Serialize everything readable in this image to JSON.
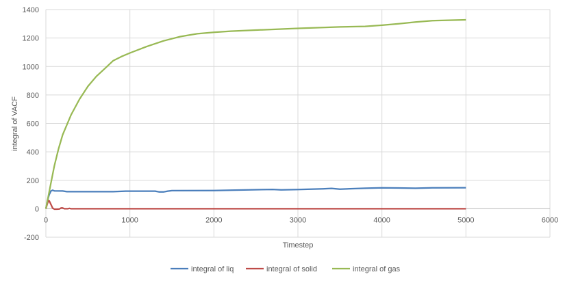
{
  "chart_data": {
    "type": "line",
    "xlabel": "Timestep",
    "ylabel": "integral of VACF",
    "xlim": [
      0,
      6000
    ],
    "ylim": [
      -200,
      1400
    ],
    "x_ticks": [
      "0",
      "1000",
      "2000",
      "3000",
      "4000",
      "5000",
      "6000"
    ],
    "y_ticks": [
      "-200",
      "0",
      "200",
      "400",
      "600",
      "800",
      "1000",
      "1200",
      "1400"
    ],
    "grid": true,
    "legend_position": "bottom",
    "series": [
      {
        "name": "integral of liq",
        "color": "#4a7ebb",
        "points": [
          [
            0,
            0
          ],
          [
            20,
            60
          ],
          [
            40,
            100
          ],
          [
            60,
            125
          ],
          [
            80,
            130
          ],
          [
            100,
            126
          ],
          [
            200,
            125
          ],
          [
            250,
            120
          ],
          [
            500,
            120
          ],
          [
            800,
            120
          ],
          [
            950,
            124
          ],
          [
            1300,
            124
          ],
          [
            1350,
            118
          ],
          [
            1400,
            118
          ],
          [
            1450,
            124
          ],
          [
            1500,
            127
          ],
          [
            2000,
            128
          ],
          [
            2200,
            130
          ],
          [
            2700,
            136
          ],
          [
            2800,
            133
          ],
          [
            3000,
            135
          ],
          [
            3300,
            140
          ],
          [
            3400,
            143
          ],
          [
            3500,
            138
          ],
          [
            3800,
            144
          ],
          [
            4000,
            147
          ],
          [
            4200,
            146
          ],
          [
            4400,
            144
          ],
          [
            4600,
            147
          ],
          [
            5000,
            148
          ]
        ]
      },
      {
        "name": "integral of solid",
        "color": "#be4b48",
        "points": [
          [
            0,
            0
          ],
          [
            15,
            30
          ],
          [
            30,
            58
          ],
          [
            40,
            55
          ],
          [
            60,
            30
          ],
          [
            80,
            5
          ],
          [
            100,
            -3
          ],
          [
            130,
            -3
          ],
          [
            160,
            -2
          ],
          [
            180,
            5
          ],
          [
            200,
            5
          ],
          [
            220,
            0
          ],
          [
            260,
            0
          ],
          [
            280,
            3
          ],
          [
            300,
            0
          ],
          [
            400,
            0
          ],
          [
            1000,
            0
          ],
          [
            2000,
            0
          ],
          [
            3000,
            0
          ],
          [
            4000,
            0
          ],
          [
            5000,
            0
          ]
        ]
      },
      {
        "name": "integral of gas",
        "color": "#98b954",
        "points": [
          [
            0,
            0
          ],
          [
            50,
            150
          ],
          [
            100,
            300
          ],
          [
            150,
            420
          ],
          [
            200,
            520
          ],
          [
            300,
            660
          ],
          [
            400,
            770
          ],
          [
            500,
            860
          ],
          [
            600,
            930
          ],
          [
            700,
            985
          ],
          [
            800,
            1040
          ],
          [
            900,
            1070
          ],
          [
            1000,
            1095
          ],
          [
            1200,
            1140
          ],
          [
            1400,
            1180
          ],
          [
            1600,
            1210
          ],
          [
            1800,
            1230
          ],
          [
            2000,
            1240
          ],
          [
            2200,
            1248
          ],
          [
            2500,
            1256
          ],
          [
            3000,
            1268
          ],
          [
            3500,
            1278
          ],
          [
            3800,
            1282
          ],
          [
            4000,
            1290
          ],
          [
            4200,
            1300
          ],
          [
            4400,
            1312
          ],
          [
            4600,
            1322
          ],
          [
            5000,
            1328
          ]
        ]
      }
    ]
  }
}
